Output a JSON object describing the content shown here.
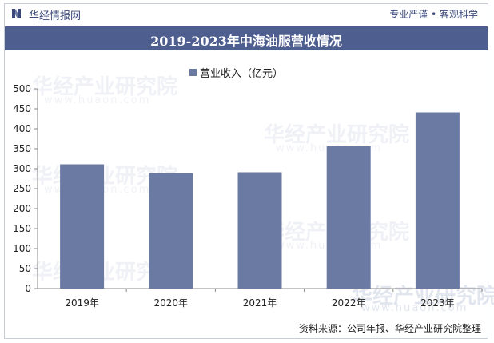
{
  "header": {
    "brand": "华经情报网",
    "tagline": "专业严谨 • 客观科学"
  },
  "title": "2019-2023年中海油服营收情况",
  "source": "资料来源：公司年报、华经产业研究院整理",
  "watermark": {
    "text": "华经产业研究院",
    "url": "www.huaon.com"
  },
  "colors": {
    "bar": "#6a7aa3",
    "title_bg": "#4e5e8f",
    "brand": "#3b4a7a"
  },
  "chart_data": {
    "type": "bar",
    "categories": [
      "2019年",
      "2020年",
      "2021年",
      "2022年",
      "2023年"
    ],
    "series": [
      {
        "name": "营业收入（亿元）",
        "values": [
          311,
          289,
          291,
          356,
          441
        ]
      }
    ],
    "ylim": [
      0,
      500
    ],
    "yticks": [
      0,
      50,
      100,
      150,
      200,
      250,
      300,
      350,
      400,
      450,
      500
    ],
    "grid": false,
    "legend": "top-center"
  }
}
